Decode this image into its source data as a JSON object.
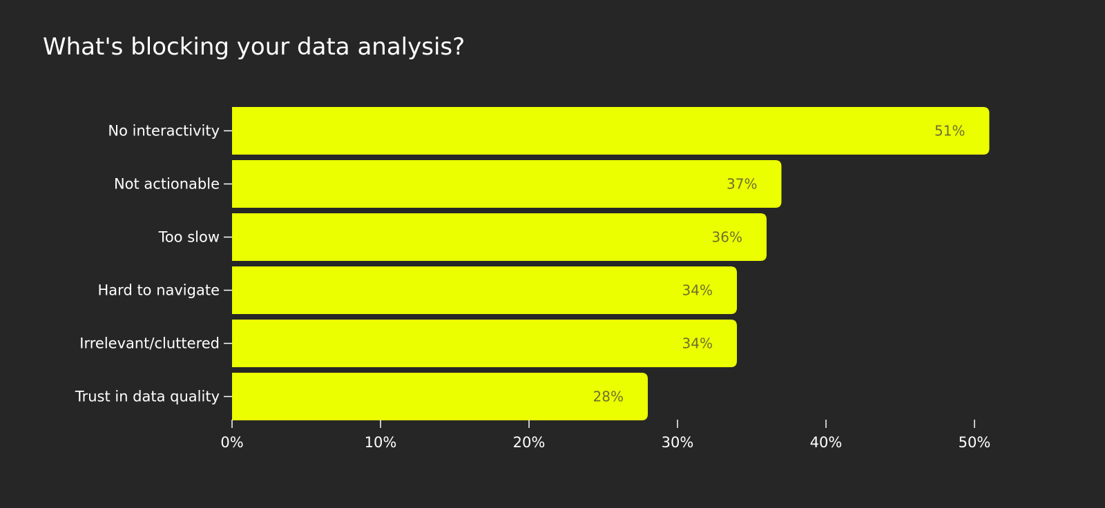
{
  "chart_data": {
    "type": "bar",
    "orientation": "horizontal",
    "title": "What's blocking your data analysis?",
    "xlabel": "",
    "ylabel": "",
    "categories": [
      "No interactivity",
      "Not actionable",
      "Too slow",
      "Hard to navigate",
      "Irrelevant/cluttered",
      "Trust in data quality"
    ],
    "values": [
      51,
      37,
      36,
      34,
      34,
      28
    ],
    "value_labels": [
      "51%",
      "37%",
      "36%",
      "34%",
      "34%",
      "28%"
    ],
    "xlim": [
      0,
      50
    ],
    "x_ticks": [
      0,
      10,
      20,
      30,
      40,
      50
    ],
    "x_tick_labels": [
      "0%",
      "10%",
      "20%",
      "30%",
      "40%",
      "50%"
    ],
    "grid": false,
    "legend": "none"
  },
  "colors": {
    "background": "#262626",
    "bar": "#EBFF00",
    "text": "#FFFFFF",
    "value_label": "#6E7030",
    "axis": "#FFFFFF"
  }
}
